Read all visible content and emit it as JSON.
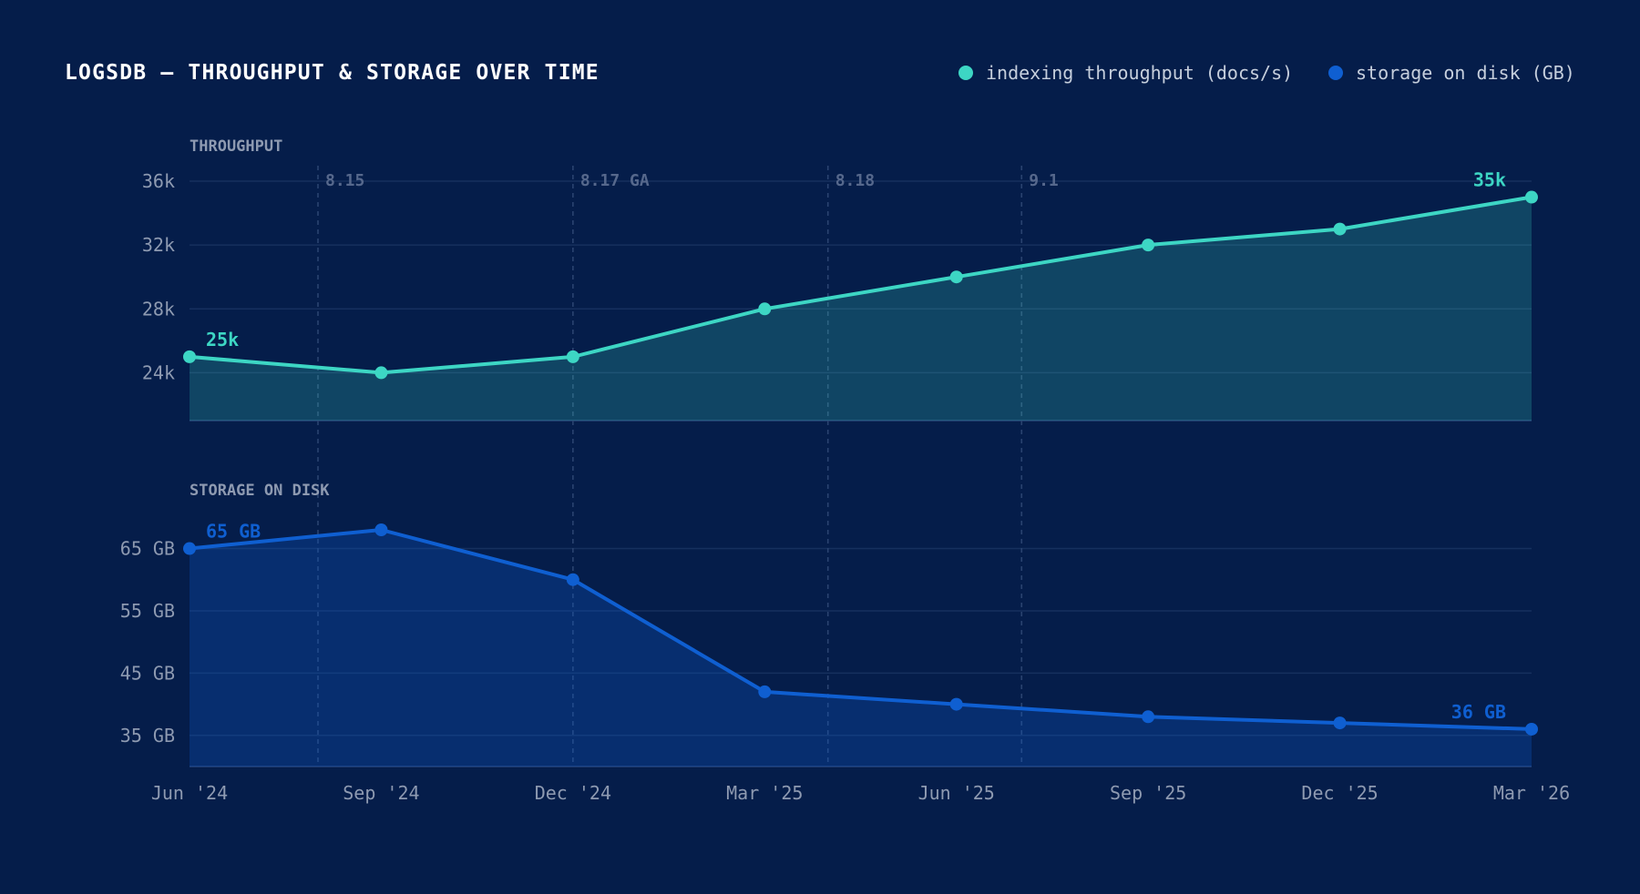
{
  "title": "LOGSDB — THROUGHPUT & STORAGE OVER TIME",
  "colors": {
    "background": "#051d4a",
    "throughput": "#3dd6c4",
    "storage": "#0f5fd1",
    "grid": "#16305e",
    "axis_text": "#8e9ab1",
    "release_line": "#2a4370",
    "release_text": "#56688c"
  },
  "legend": {
    "items": [
      {
        "label": "indexing throughput (docs/s)",
        "color": "#3dd6c4"
      },
      {
        "label": "storage on disk (GB)",
        "color": "#0f5fd1"
      }
    ]
  },
  "chart_data": {
    "type": "line",
    "x": [
      "Jun '24",
      "Sep '24",
      "Dec '24",
      "Mar '25",
      "Jun '25",
      "Sep '25",
      "Dec '25",
      "Mar '26"
    ],
    "x_tick_labels": [
      "Jun '24",
      "Sep '24",
      "Dec '24",
      "Mar '25",
      "Jun '25",
      "Sep '25",
      "Dec '25",
      "Mar '26"
    ],
    "release_markers": [
      {
        "label": "8.15",
        "position": 0.67
      },
      {
        "label": "8.17 GA",
        "position": 2.0
      },
      {
        "label": "8.18",
        "position": 3.33
      },
      {
        "label": "9.1",
        "position": 4.34
      }
    ],
    "panels": [
      {
        "title": "THROUGHPUT",
        "series": [
          {
            "name": "indexing throughput (docs/s)",
            "values": [
              25000,
              24000,
              25000,
              28000,
              30000,
              32000,
              33000,
              35000
            ]
          }
        ],
        "ylim": [
          21000,
          36000
        ],
        "y_ticks": [
          24000,
          28000,
          32000,
          36000
        ],
        "y_tick_labels": [
          "24k",
          "28k",
          "32k",
          "36k"
        ],
        "annotations": [
          {
            "text": "25k",
            "index": 0
          },
          {
            "text": "35k",
            "index": 7
          }
        ]
      },
      {
        "title": "STORAGE ON DISK",
        "series": [
          {
            "name": "storage on disk (GB)",
            "values": [
              65,
              68,
              60,
              42,
              40,
              38,
              37,
              36
            ]
          }
        ],
        "ylim": [
          30,
          68
        ],
        "y_ticks": [
          35,
          45,
          55,
          65
        ],
        "y_tick_labels": [
          "35 GB",
          "45 GB",
          "55 GB",
          "65 GB"
        ],
        "annotations": [
          {
            "text": "65 GB",
            "index": 0
          },
          {
            "text": "36 GB",
            "index": 7
          }
        ]
      }
    ],
    "grid": true,
    "legend_position": "top-right"
  }
}
